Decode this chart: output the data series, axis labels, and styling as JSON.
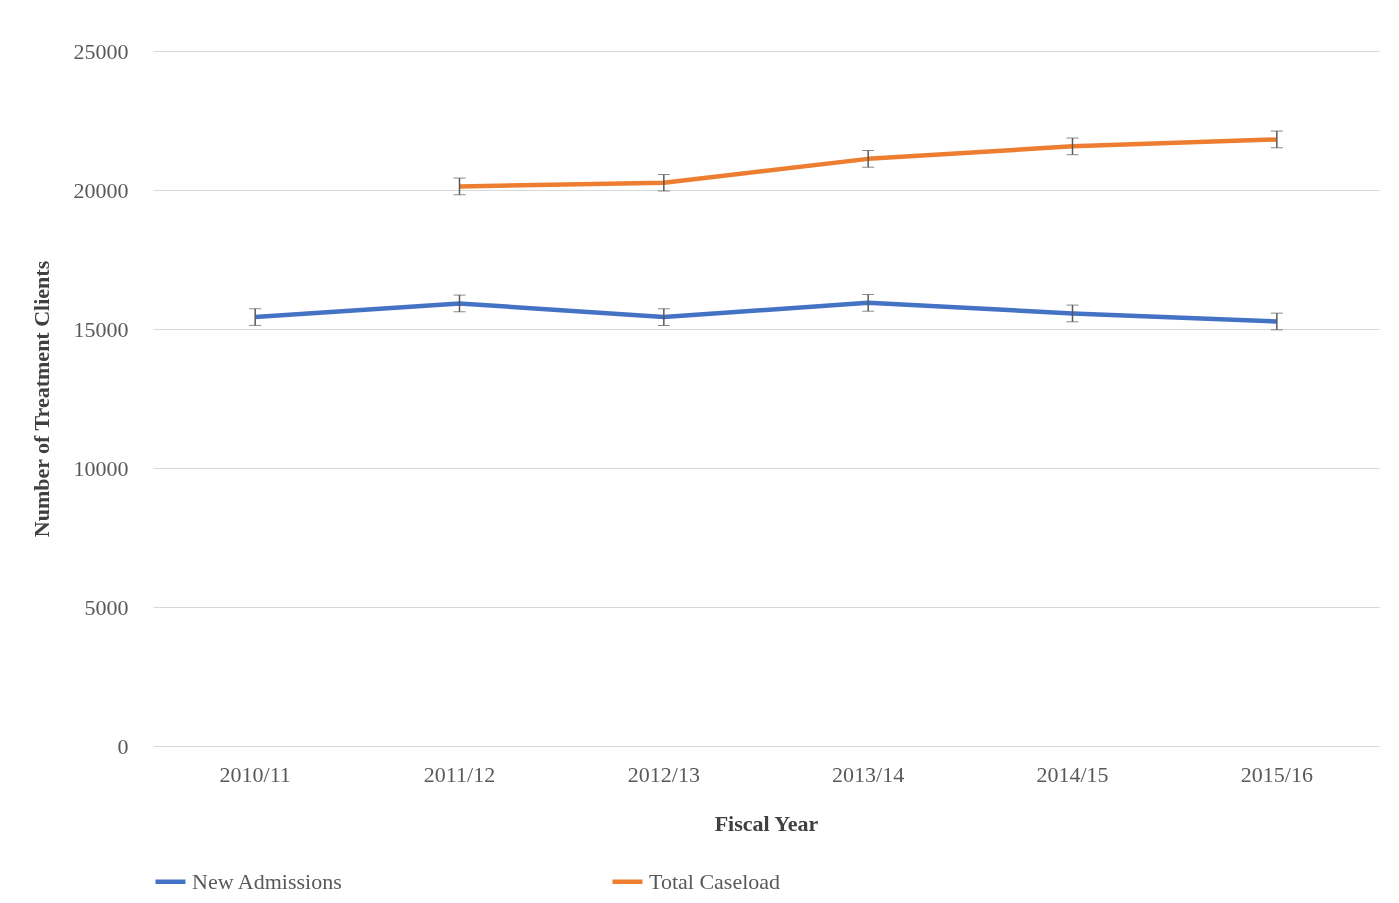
{
  "chart_data": {
    "type": "line",
    "xlabel": "Fiscal Year",
    "ylabel": "Number of Treatment Clients",
    "categories": [
      "2010/11",
      "2011/12",
      "2012/13",
      "2013/14",
      "2014/15",
      "2015/16"
    ],
    "series": [
      {
        "name": "New Admissions",
        "color": "#4472c4",
        "values": [
          15430,
          15920,
          15430,
          15940,
          15560,
          15270
        ],
        "errors": [
          300,
          300,
          300,
          300,
          300,
          300
        ]
      },
      {
        "name": "Total Caseload",
        "color": "#ed7d31",
        "values": [
          null,
          20130,
          20260,
          21120,
          21570,
          21820
        ],
        "errors": [
          null,
          300,
          300,
          300,
          300,
          300
        ]
      }
    ],
    "ylim": [
      0,
      25000
    ],
    "yticks": [
      0,
      5000,
      10000,
      15000,
      20000,
      25000
    ],
    "grid": "y",
    "legend": "bottom",
    "marker": "none",
    "line_style": "solid"
  }
}
